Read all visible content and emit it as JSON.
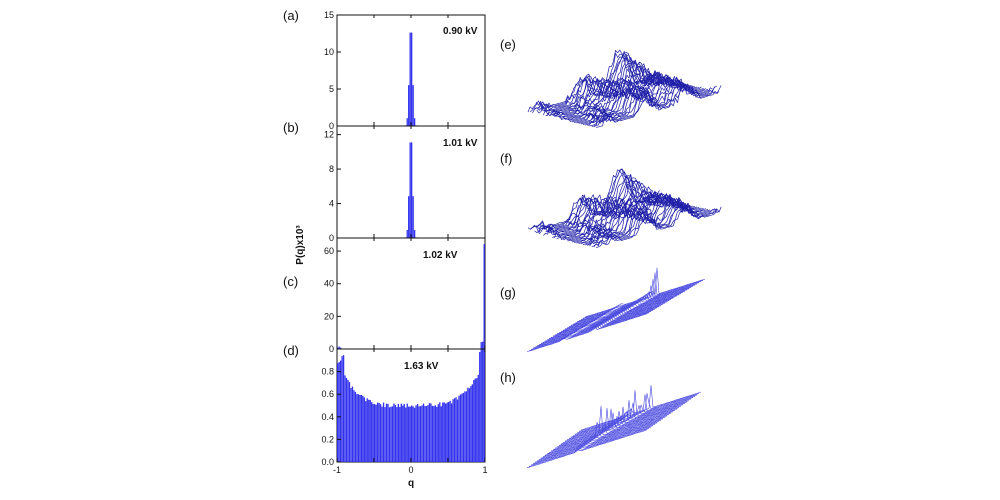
{
  "figure": {
    "ylabel": "P(q)x10³",
    "xlabel": "q"
  },
  "chart_data": [
    {
      "type": "bar",
      "panel": "(a)",
      "annotation": "0.90 kV",
      "xlim": [
        -1,
        1
      ],
      "ylim": [
        0,
        15
      ],
      "yticks": [
        "0",
        "5",
        "10",
        "15"
      ],
      "peaks": [
        {
          "x": 0.0,
          "height": 14.0,
          "width": 0.022
        }
      ],
      "baseline": 0
    },
    {
      "type": "bar",
      "panel": "(b)",
      "annotation": "1.01 kV",
      "xlim": [
        -1,
        1
      ],
      "ylim": [
        0,
        13
      ],
      "yticks": [
        "0",
        "4",
        "8",
        "12"
      ],
      "peaks": [
        {
          "x": 0.0,
          "height": 12.3,
          "width": 0.022
        }
      ],
      "baseline": 0
    },
    {
      "type": "bar",
      "panel": "(c)",
      "annotation": "1.02 kV",
      "xlim": [
        -1,
        1
      ],
      "ylim": [
        0,
        68
      ],
      "yticks": [
        "0",
        "20",
        "40",
        "60"
      ],
      "peaks": [
        {
          "x": 0.99,
          "height": 64,
          "width": 0.006
        },
        {
          "x": 0.96,
          "height": 6,
          "width": 0.012
        },
        {
          "x": -0.97,
          "height": 1.5,
          "width": 0.02
        }
      ],
      "baseline": 0
    },
    {
      "type": "bar",
      "panel": "(d)",
      "annotation": "1.63 kV",
      "xlim": [
        -1,
        1
      ],
      "ylim": [
        0,
        1.0
      ],
      "yticks": [
        "0.0",
        "0.2",
        "0.4",
        "0.6",
        "0.8"
      ],
      "xticks": [
        "-1",
        "0",
        "1"
      ],
      "u_shape": {
        "center": 0.5,
        "edge_left": 0.97,
        "edge_right": 1.02,
        "peak_left_x": -0.9,
        "peak_right_x": 0.92
      }
    }
  ],
  "surfaces": [
    {
      "panel": "(e)",
      "style": "noisy"
    },
    {
      "panel": "(f)",
      "style": "noisy"
    },
    {
      "panel": "(g)",
      "style": "smooth"
    },
    {
      "panel": "(h)",
      "style": "smooth"
    }
  ],
  "colors": {
    "bars": "#3333ee",
    "surface": "#1f1fa8",
    "surface_light": "#4a4ae0",
    "axis": "#111111"
  }
}
